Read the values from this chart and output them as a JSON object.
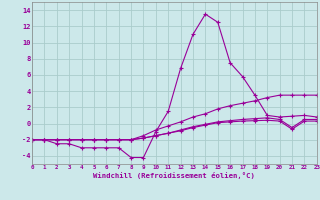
{
  "xlabel": "Windchill (Refroidissement éolien,°C)",
  "bg_color": "#cce8ea",
  "grid_color": "#aacccc",
  "line_color": "#990099",
  "x_min": 0,
  "x_max": 23,
  "y_min": -5,
  "y_max": 15,
  "yticks": [
    -4,
    -2,
    0,
    2,
    4,
    6,
    8,
    10,
    12,
    14
  ],
  "xticks": [
    0,
    1,
    2,
    3,
    4,
    5,
    6,
    7,
    8,
    9,
    10,
    11,
    12,
    13,
    14,
    15,
    16,
    17,
    18,
    19,
    20,
    21,
    22,
    23
  ],
  "series": [
    {
      "x": [
        0,
        1,
        2,
        3,
        4,
        5,
        6,
        7,
        8,
        9,
        10,
        11,
        12,
        13,
        14,
        15,
        16,
        17,
        18,
        19,
        20,
        21,
        22,
        23
      ],
      "y": [
        -2,
        -2,
        -2.5,
        -2.5,
        -3,
        -3,
        -3,
        -3,
        -4.2,
        -4.2,
        -1,
        1.5,
        6.8,
        11,
        13.5,
        12.5,
        7.5,
        5.8,
        3.5,
        1,
        0.8,
        0.9,
        1,
        0.8
      ]
    },
    {
      "x": [
        0,
        1,
        2,
        3,
        4,
        5,
        6,
        7,
        8,
        9,
        10,
        11,
        12,
        13,
        14,
        15,
        16,
        17,
        18,
        19,
        20,
        21,
        22,
        23
      ],
      "y": [
        -2,
        -2,
        -2,
        -2,
        -2,
        -2,
        -2,
        -2,
        -2,
        -1.5,
        -0.8,
        -0.3,
        0.2,
        0.8,
        1.2,
        1.8,
        2.2,
        2.5,
        2.8,
        3.2,
        3.5,
        3.5,
        3.5,
        3.5
      ]
    },
    {
      "x": [
        0,
        1,
        2,
        3,
        4,
        5,
        6,
        7,
        8,
        9,
        10,
        11,
        12,
        13,
        14,
        15,
        16,
        17,
        18,
        19,
        20,
        21,
        22,
        23
      ],
      "y": [
        -2,
        -2,
        -2,
        -2,
        -2,
        -2,
        -2,
        -2,
        -2,
        -1.8,
        -1.5,
        -1.2,
        -0.8,
        -0.4,
        -0.1,
        0.2,
        0.35,
        0.5,
        0.6,
        0.7,
        0.5,
        -0.5,
        0.5,
        0.5
      ]
    },
    {
      "x": [
        0,
        1,
        2,
        3,
        4,
        5,
        6,
        7,
        8,
        9,
        10,
        11,
        12,
        13,
        14,
        15,
        16,
        17,
        18,
        19,
        20,
        21,
        22,
        23
      ],
      "y": [
        -2,
        -2,
        -2,
        -2,
        -2,
        -2,
        -2,
        -2,
        -2,
        -1.8,
        -1.5,
        -1.2,
        -0.9,
        -0.5,
        -0.2,
        0.1,
        0.2,
        0.3,
        0.35,
        0.4,
        0.3,
        -0.7,
        0.3,
        0.3
      ]
    }
  ]
}
